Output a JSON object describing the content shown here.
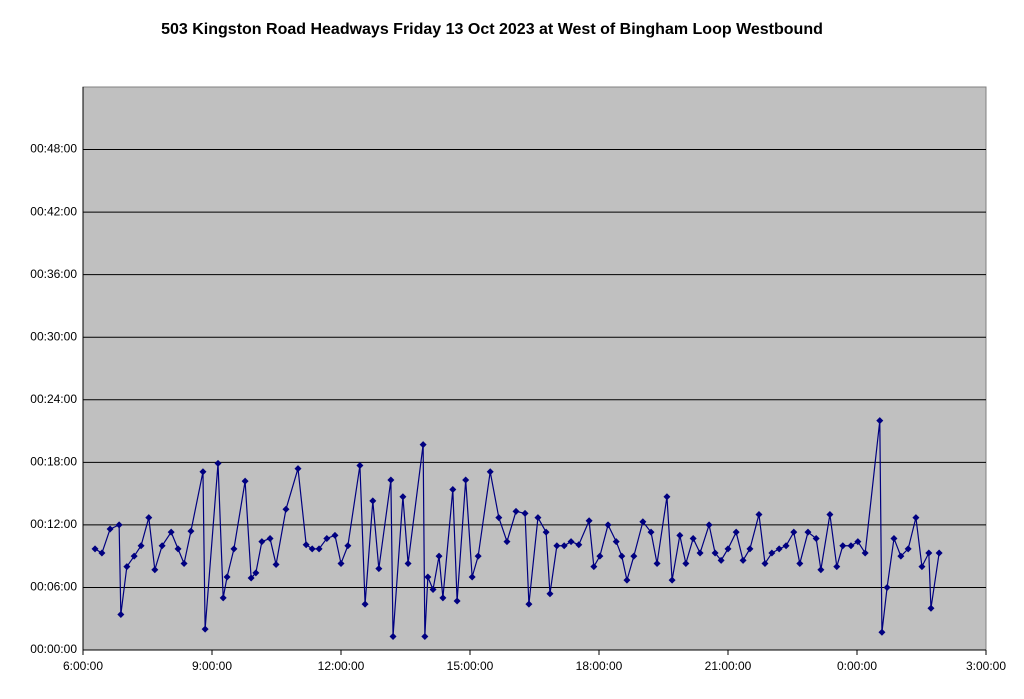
{
  "chart_data": {
    "type": "line",
    "title": "503 Kingston Road Headways Friday 13 Oct 2023 at West of Bingham Loop Westbound",
    "color": "#000080",
    "grid": true,
    "x": [
      6.28,
      6.44,
      6.63,
      6.84,
      6.88,
      7.02,
      7.19,
      7.35,
      7.53,
      7.67,
      7.84,
      8.05,
      8.21,
      8.35,
      8.51,
      8.79,
      8.84,
      9.14,
      9.26,
      9.35,
      9.51,
      9.77,
      9.91,
      10.02,
      10.16,
      10.35,
      10.49,
      10.72,
      11.0,
      11.19,
      11.33,
      11.49,
      11.67,
      11.86,
      12.0,
      12.16,
      12.44,
      12.56,
      12.74,
      12.88,
      13.16,
      13.21,
      13.44,
      13.56,
      13.91,
      13.95,
      14.02,
      14.14,
      14.28,
      14.37,
      14.6,
      14.7,
      14.9,
      15.05,
      15.19,
      15.47,
      15.67,
      15.86,
      16.07,
      16.28,
      16.37,
      16.58,
      16.77,
      16.86,
      17.02,
      17.19,
      17.35,
      17.53,
      17.77,
      17.88,
      18.02,
      18.21,
      18.4,
      18.53,
      18.65,
      18.81,
      19.02,
      19.21,
      19.35,
      19.58,
      19.7,
      19.88,
      20.02,
      20.19,
      20.35,
      20.56,
      20.7,
      20.84,
      21.0,
      21.19,
      21.35,
      21.51,
      21.72,
      21.86,
      22.02,
      22.19,
      22.35,
      22.53,
      22.67,
      22.86,
      23.05,
      23.16,
      23.37,
      23.53,
      23.67,
      23.86,
      24.02,
      24.19,
      24.53,
      24.58,
      24.7,
      24.86,
      25.02,
      25.19,
      25.37,
      25.51,
      25.67,
      25.72,
      25.91
    ],
    "values": [
      9.7,
      9.3,
      11.6,
      12.0,
      3.4,
      8.0,
      9.0,
      10.0,
      12.7,
      7.7,
      10.0,
      11.3,
      9.7,
      8.3,
      11.4,
      17.1,
      2.0,
      17.9,
      5.0,
      7.0,
      9.7,
      16.2,
      6.9,
      7.4,
      10.4,
      10.7,
      8.2,
      13.5,
      17.4,
      10.1,
      9.7,
      9.7,
      10.7,
      11.0,
      8.3,
      10.0,
      17.7,
      4.4,
      14.3,
      7.8,
      16.3,
      1.3,
      14.7,
      8.3,
      19.7,
      1.3,
      7.0,
      5.8,
      9.0,
      5.0,
      15.4,
      4.7,
      16.3,
      7.0,
      9.0,
      17.1,
      12.7,
      10.4,
      13.3,
      13.1,
      4.4,
      12.7,
      11.3,
      5.4,
      10.0,
      10.0,
      10.4,
      10.1,
      12.4,
      8.0,
      9.0,
      12.0,
      10.4,
      9.0,
      6.7,
      9.0,
      12.3,
      11.3,
      8.3,
      14.7,
      6.7,
      11.0,
      8.3,
      10.7,
      9.3,
      12.0,
      9.3,
      8.6,
      9.7,
      11.3,
      8.6,
      9.7,
      13.0,
      8.3,
      9.3,
      9.7,
      10.0,
      11.3,
      8.3,
      11.3,
      10.7,
      7.7,
      13.0,
      8.0,
      10.0,
      10.0,
      10.4,
      9.3,
      22.0,
      1.7,
      6.0,
      10.7,
      9.0,
      9.7,
      12.7,
      8.0,
      9.3,
      4.0,
      9.3
    ],
    "xlim": [
      6,
      27
    ],
    "xticks": [
      {
        "value": 6,
        "label": "6:00:00"
      },
      {
        "value": 9,
        "label": "9:00:00"
      },
      {
        "value": 12,
        "label": "12:00:00"
      },
      {
        "value": 15,
        "label": "15:00:00"
      },
      {
        "value": 18,
        "label": "18:00:00"
      },
      {
        "value": 21,
        "label": "21:00:00"
      },
      {
        "value": 24,
        "label": "0:00:00"
      },
      {
        "value": 27,
        "label": "3:00:00"
      }
    ],
    "ylim": [
      0,
      54
    ],
    "yticks": [
      {
        "value": 0,
        "label": "00:00:00"
      },
      {
        "value": 6,
        "label": "00:06:00"
      },
      {
        "value": 12,
        "label": "00:12:00"
      },
      {
        "value": 18,
        "label": "00:18:00"
      },
      {
        "value": 24,
        "label": "00:24:00"
      },
      {
        "value": 30,
        "label": "00:30:00"
      },
      {
        "value": 36,
        "label": "00:36:00"
      },
      {
        "value": 42,
        "label": "00:42:00"
      },
      {
        "value": 48,
        "label": "00:48:00"
      }
    ]
  }
}
